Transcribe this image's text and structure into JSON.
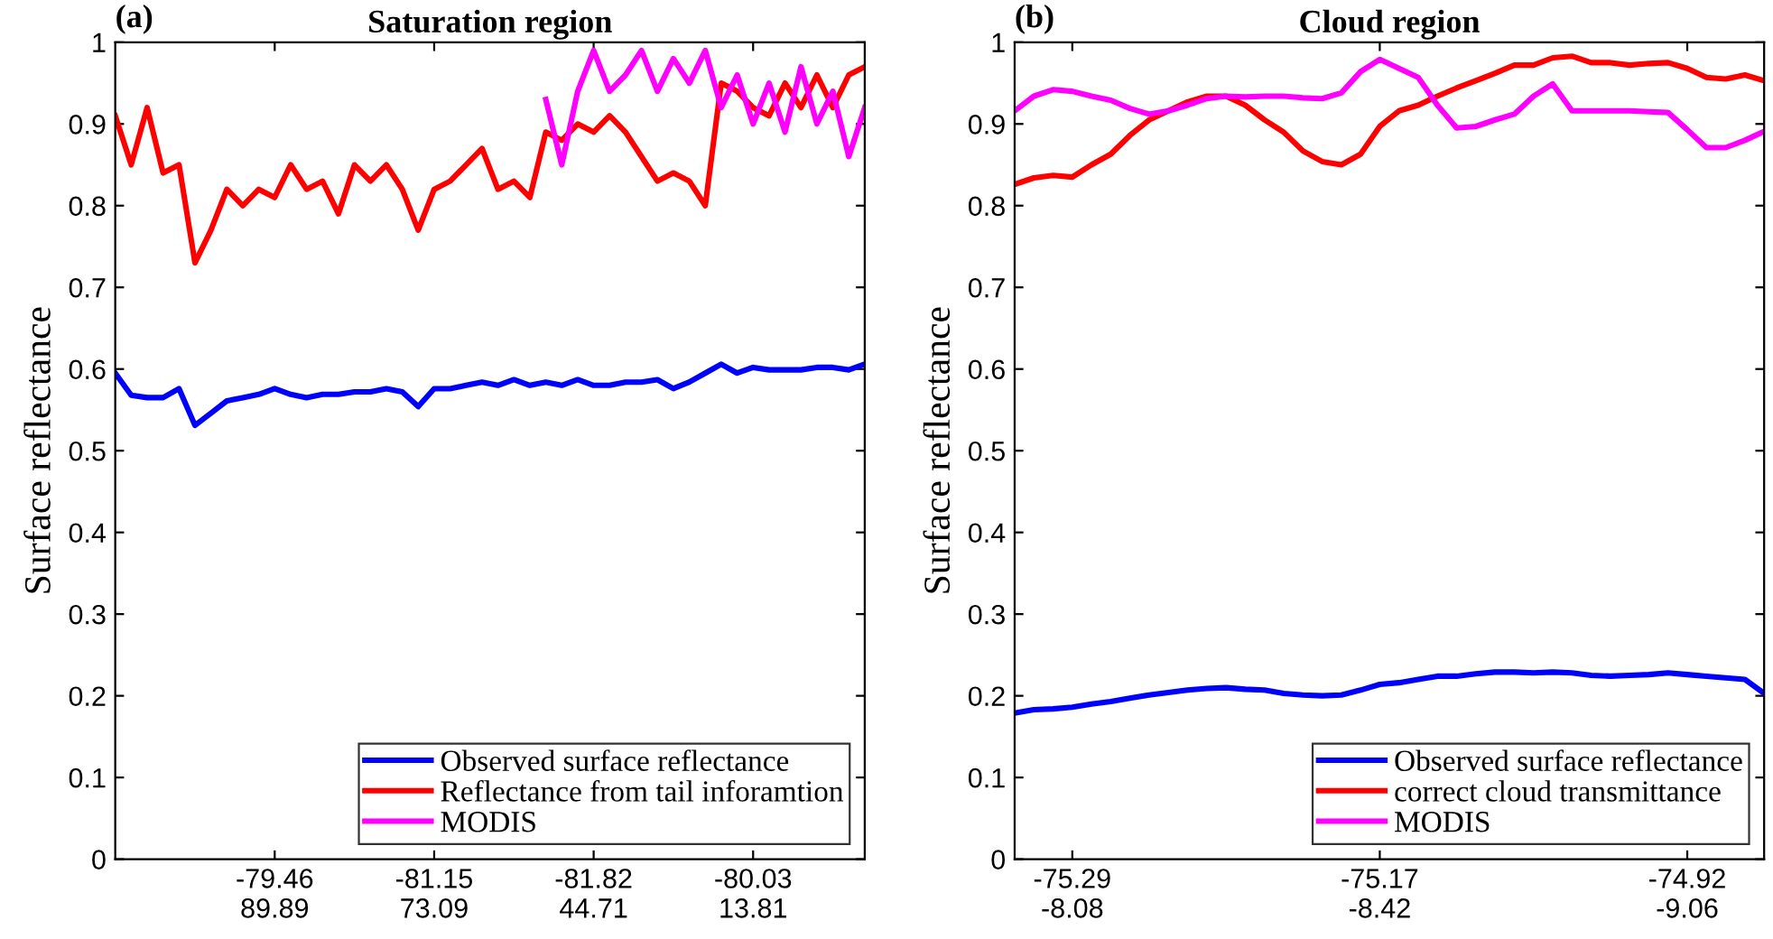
{
  "chart_data": [
    {
      "type": "line",
      "title": "Saturation region",
      "ylabel": "Surface reflectance",
      "annotations": [
        "(a)"
      ],
      "categories": [
        null,
        null,
        null,
        null,
        null,
        null,
        null,
        null,
        null,
        null,
        "-79.46\n89.89",
        null,
        null,
        null,
        null,
        null,
        null,
        null,
        null,
        null,
        "-81.15\n73.09",
        null,
        null,
        null,
        null,
        null,
        null,
        null,
        null,
        null,
        "-81.82\n44.71",
        null,
        null,
        null,
        null,
        null,
        null,
        null,
        null,
        null,
        "-80.03\n13.81",
        null,
        null,
        null,
        null,
        null,
        null,
        null
      ],
      "ylim": [
        0,
        1
      ],
      "yticks": [
        0,
        0.1,
        0.2,
        0.3,
        0.4,
        0.5,
        0.6,
        0.7,
        0.8,
        0.9,
        1
      ],
      "grid": false,
      "legend": "bottom right",
      "series": [
        {
          "name": "Observed surface reflectance",
          "color": "#0000ff",
          "values": [
            0.595,
            0.568,
            0.565,
            0.565,
            0.576,
            0.531,
            0.546,
            0.561,
            0.565,
            0.569,
            0.576,
            0.569,
            0.565,
            0.569,
            0.569,
            0.572,
            0.572,
            0.576,
            0.572,
            0.554,
            0.576,
            0.576,
            0.58,
            0.584,
            0.58,
            0.587,
            0.58,
            0.584,
            0.58,
            0.587,
            0.58,
            0.58,
            0.584,
            0.584,
            0.587,
            0.576,
            0.584,
            0.595,
            0.606,
            0.595,
            0.602,
            0.599,
            0.599,
            0.599,
            0.602,
            0.602,
            0.599,
            0.606
          ]
        },
        {
          "name": "Reflectance from tail inforamtion",
          "color": "#ff0000",
          "values": [
            0.91,
            0.85,
            0.92,
            0.84,
            0.85,
            0.73,
            0.77,
            0.82,
            0.8,
            0.82,
            0.81,
            0.85,
            0.82,
            0.83,
            0.79,
            0.85,
            0.83,
            0.85,
            0.82,
            0.77,
            0.82,
            0.83,
            0.85,
            0.87,
            0.82,
            0.83,
            0.81,
            0.89,
            0.88,
            0.9,
            0.89,
            0.91,
            0.89,
            0.86,
            0.83,
            0.84,
            0.83,
            0.8,
            0.95,
            0.94,
            0.92,
            0.91,
            0.95,
            0.92,
            0.96,
            0.92,
            0.96,
            0.97
          ]
        },
        {
          "name": "MODIS",
          "color": "#ff00ff",
          "values": [
            null,
            null,
            null,
            null,
            null,
            null,
            null,
            null,
            null,
            null,
            null,
            null,
            null,
            null,
            null,
            null,
            null,
            null,
            null,
            null,
            null,
            null,
            null,
            null,
            null,
            null,
            null,
            0.93,
            0.85,
            0.94,
            0.99,
            0.94,
            0.96,
            0.99,
            0.94,
            0.98,
            0.95,
            0.99,
            0.92,
            0.96,
            0.9,
            0.95,
            0.89,
            0.97,
            0.9,
            0.94,
            0.86,
            0.92
          ]
        }
      ]
    },
    {
      "type": "line",
      "title": "Cloud region",
      "ylabel": "Surface reflectance",
      "annotations": [
        "(b)"
      ],
      "categories": [
        null,
        null,
        null,
        "-75.29\n-8.08",
        null,
        null,
        null,
        null,
        null,
        null,
        null,
        null,
        null,
        null,
        null,
        null,
        null,
        null,
        null,
        "-75.17\n-8.42",
        null,
        null,
        null,
        null,
        null,
        null,
        null,
        null,
        null,
        null,
        null,
        null,
        null,
        null,
        null,
        "-74.92\n-9.06",
        null,
        null,
        null,
        null
      ],
      "ylim": [
        0,
        1
      ],
      "yticks": [
        0,
        0.1,
        0.2,
        0.3,
        0.4,
        0.5,
        0.6,
        0.7,
        0.8,
        0.9,
        1
      ],
      "grid": false,
      "legend": "bottom right",
      "series": [
        {
          "name": "Observed surface reflectance",
          "color": "#0000ff",
          "values": [
            0.179,
            0.183,
            0.184,
            0.186,
            0.19,
            0.193,
            0.197,
            0.201,
            0.204,
            0.207,
            0.209,
            0.21,
            0.208,
            0.207,
            0.203,
            0.201,
            0.2,
            0.201,
            0.207,
            0.214,
            0.216,
            0.22,
            0.224,
            0.224,
            0.227,
            0.229,
            0.229,
            0.228,
            0.229,
            0.228,
            0.225,
            0.224,
            0.225,
            0.226,
            0.228,
            0.226,
            0.224,
            0.222,
            0.22,
            0.203
          ]
        },
        {
          "name": "correct cloud transmittance",
          "color": "#ff0000",
          "values": [
            0.826,
            0.834,
            0.837,
            0.835,
            0.85,
            0.863,
            0.886,
            0.905,
            0.916,
            0.927,
            0.934,
            0.934,
            0.923,
            0.905,
            0.89,
            0.867,
            0.854,
            0.85,
            0.863,
            0.897,
            0.916,
            0.923,
            0.934,
            0.944,
            0.953,
            0.962,
            0.972,
            0.972,
            0.981,
            0.983,
            0.975,
            0.975,
            0.972,
            0.974,
            0.975,
            0.968,
            0.957,
            0.955,
            0.96,
            0.953
          ]
        },
        {
          "name": "MODIS",
          "color": "#ff00ff",
          "values": [
            0.916,
            0.934,
            0.942,
            0.94,
            0.934,
            0.929,
            0.919,
            0.912,
            0.916,
            0.923,
            0.931,
            0.934,
            0.933,
            0.934,
            0.934,
            0.932,
            0.931,
            0.938,
            0.964,
            0.979,
            0.968,
            0.957,
            0.923,
            0.895,
            0.897,
            0.905,
            0.912,
            0.934,
            0.949,
            0.916,
            0.916,
            0.916,
            0.916,
            0.915,
            0.914,
            0.893,
            0.871,
            0.871,
            0.88,
            0.891
          ]
        }
      ]
    }
  ]
}
